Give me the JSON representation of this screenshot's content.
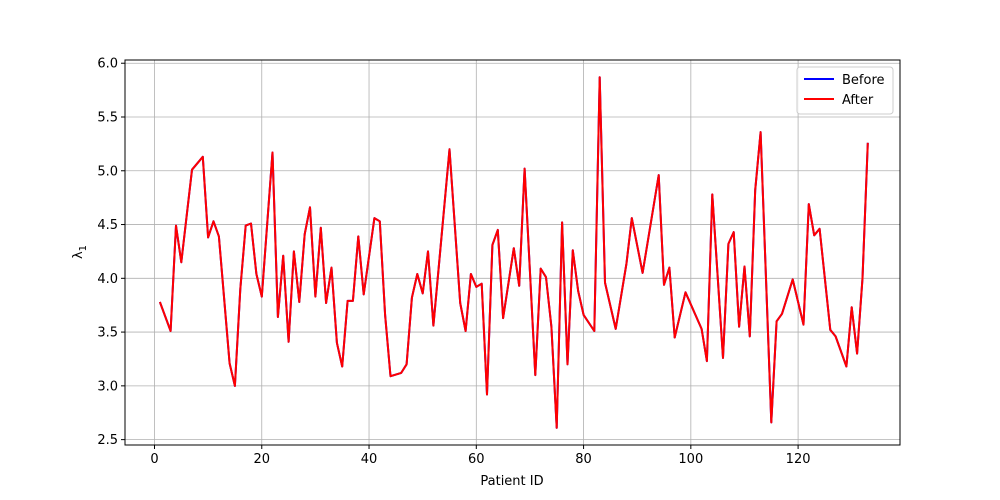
{
  "chart_data": {
    "type": "line",
    "title": "",
    "xlabel": "Patient ID",
    "ylabel": "λ",
    "ylabel_subscript": "1",
    "xlim": [
      -5.5,
      139
    ],
    "ylim": [
      2.45,
      6.03
    ],
    "xticks": [
      0,
      20,
      40,
      60,
      80,
      100,
      120
    ],
    "yticks": [
      2.5,
      3.0,
      3.5,
      4.0,
      4.5,
      5.0,
      5.5,
      6.0
    ],
    "xtick_labels": [
      "0",
      "20",
      "40",
      "60",
      "80",
      "100",
      "120"
    ],
    "ytick_labels": [
      "2.5",
      "3.0",
      "3.5",
      "4.0",
      "4.5",
      "5.0",
      "5.5",
      "6.0"
    ],
    "grid": true,
    "legend": "top-right",
    "points": [
      [
        1,
        3.78
      ],
      [
        3,
        3.51
      ],
      [
        4,
        4.49
      ],
      [
        5,
        4.15
      ],
      [
        7,
        5.01
      ],
      [
        9,
        5.13
      ],
      [
        10,
        4.38
      ],
      [
        11,
        4.53
      ],
      [
        12,
        4.39
      ],
      [
        14,
        3.21
      ],
      [
        15,
        3.0
      ],
      [
        16,
        3.9
      ],
      [
        17,
        4.49
      ],
      [
        18,
        4.51
      ],
      [
        19,
        4.04
      ],
      [
        20,
        3.83
      ],
      [
        22,
        5.17
      ],
      [
        23,
        3.64
      ],
      [
        24,
        4.21
      ],
      [
        25,
        3.41
      ],
      [
        26,
        4.25
      ],
      [
        27,
        3.78
      ],
      [
        28,
        4.41
      ],
      [
        29,
        4.66
      ],
      [
        30,
        3.83
      ],
      [
        31,
        4.47
      ],
      [
        32,
        3.77
      ],
      [
        33,
        4.1
      ],
      [
        34,
        3.4
      ],
      [
        35,
        3.18
      ],
      [
        36,
        3.79
      ],
      [
        37,
        3.79
      ],
      [
        38,
        4.39
      ],
      [
        39,
        3.85
      ],
      [
        41,
        4.56
      ],
      [
        42,
        4.53
      ],
      [
        43,
        3.66
      ],
      [
        44,
        3.09
      ],
      [
        46,
        3.12
      ],
      [
        47,
        3.2
      ],
      [
        48,
        3.82
      ],
      [
        49,
        4.04
      ],
      [
        50,
        3.86
      ],
      [
        51,
        4.25
      ],
      [
        52,
        3.56
      ],
      [
        53,
        4.11
      ],
      [
        55,
        5.2
      ],
      [
        57,
        3.77
      ],
      [
        58,
        3.51
      ],
      [
        59,
        4.04
      ],
      [
        60,
        3.92
      ],
      [
        61,
        3.95
      ],
      [
        62,
        2.92
      ],
      [
        63,
        4.31
      ],
      [
        64,
        4.45
      ],
      [
        65,
        3.63
      ],
      [
        67,
        4.28
      ],
      [
        68,
        3.93
      ],
      [
        69,
        5.02
      ],
      [
        71,
        3.1
      ],
      [
        72,
        4.09
      ],
      [
        73,
        4.01
      ],
      [
        74,
        3.55
      ],
      [
        75,
        2.61
      ],
      [
        76,
        4.52
      ],
      [
        77,
        3.2
      ],
      [
        78,
        4.26
      ],
      [
        79,
        3.88
      ],
      [
        80,
        3.66
      ],
      [
        82,
        3.51
      ],
      [
        83,
        5.87
      ],
      [
        84,
        3.96
      ],
      [
        86,
        3.53
      ],
      [
        88,
        4.14
      ],
      [
        89,
        4.56
      ],
      [
        91,
        4.05
      ],
      [
        94,
        4.96
      ],
      [
        95,
        3.94
      ],
      [
        96,
        4.1
      ],
      [
        97,
        3.45
      ],
      [
        99,
        3.87
      ],
      [
        102,
        3.53
      ],
      [
        103,
        3.23
      ],
      [
        104,
        4.78
      ],
      [
        106,
        3.26
      ],
      [
        107,
        4.32
      ],
      [
        108,
        4.43
      ],
      [
        109,
        3.55
      ],
      [
        110,
        4.11
      ],
      [
        111,
        3.46
      ],
      [
        112,
        4.82
      ],
      [
        113,
        5.36
      ],
      [
        115,
        2.66
      ],
      [
        116,
        3.6
      ],
      [
        117,
        3.67
      ],
      [
        119,
        3.99
      ],
      [
        121,
        3.57
      ],
      [
        122,
        4.69
      ],
      [
        123,
        4.4
      ],
      [
        124,
        4.46
      ],
      [
        126,
        3.52
      ],
      [
        127,
        3.46
      ],
      [
        129,
        3.18
      ],
      [
        130,
        3.73
      ],
      [
        131,
        3.3
      ],
      [
        132,
        4.0
      ],
      [
        133,
        5.26
      ]
    ],
    "series": [
      {
        "name": "Before",
        "color": "#0000ff",
        "source": "points"
      },
      {
        "name": "After",
        "color": "#ff0000",
        "source": "points"
      }
    ]
  }
}
